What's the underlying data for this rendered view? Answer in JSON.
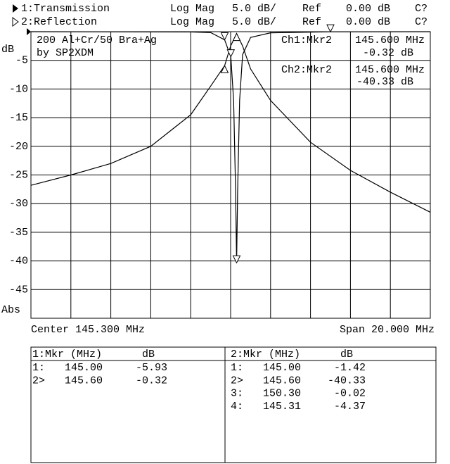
{
  "chart_data": {
    "type": "line",
    "channels": [
      {
        "label": "1:Transmission",
        "format": "Log Mag",
        "scale": "5.0 dB/",
        "ref_label": "Ref",
        "ref": "0.00 dB",
        "cal": "C?"
      },
      {
        "label": "2:Reflection",
        "format": "Log Mag",
        "scale": "5.0 dB/",
        "ref_label": "Ref",
        "ref": "0.00 dB",
        "cal": "C?"
      }
    ],
    "y_unit_label": "dB",
    "bottom_label": "Abs",
    "annotations": [
      "200 Al+Cr/50 Bra+Ag",
      "by SP2XDM"
    ],
    "readouts": [
      [
        "Ch1:Mkr2",
        "145.600 MHz",
        "-0.32 dB"
      ],
      [
        "Ch2:Mkr2",
        "145.600 MHz",
        "-40.33 dB"
      ]
    ],
    "center_label": "Center 145.300 MHz",
    "span_label": "Span 20.000 MHz",
    "xlim": [
      135.3,
      155.3
    ],
    "ylim": [
      -50,
      0
    ],
    "yticks": [
      -5,
      -10,
      -15,
      -20,
      -25,
      -30,
      -35,
      -40,
      -45
    ],
    "grid": true,
    "series": [
      {
        "name": "Transmission",
        "color": "#000000",
        "x": [
          135.3,
          137.3,
          139.3,
          141.3,
          143.3,
          144.3,
          145.0,
          145.3,
          145.6,
          145.9,
          146.3,
          147.3,
          149.3,
          151.3,
          153.3,
          155.3
        ],
        "values": [
          -26.8,
          -25.0,
          -23.0,
          -20.0,
          -14.5,
          -9.5,
          -5.93,
          -2.5,
          -0.32,
          -2.5,
          -6.5,
          -12,
          -19.3,
          -24.2,
          -28,
          -31.5
        ],
        "table_header": [
          "1:Mkr (MHz)",
          "dB"
        ],
        "markers": [
          {
            "name": "1:",
            "x": {
              "value": 145,
              "label": "145.00"
            },
            "value": -5.93
          },
          {
            "name": "2>",
            "x": {
              "value": 145.6,
              "label": "145.60"
            },
            "value": -0.32
          }
        ]
      },
      {
        "name": "Reflection",
        "color": "#000000",
        "x": [
          135.3,
          143.3,
          144.3,
          145.0,
          145.31,
          145.45,
          145.55,
          145.6,
          145.65,
          145.75,
          145.9,
          146.3,
          147.3,
          150.3,
          155.3
        ],
        "values": [
          0,
          -0.05,
          -0.15,
          -1.42,
          -4.37,
          -12,
          -28,
          -40.33,
          -28,
          -12,
          -4,
          -1,
          -0.2,
          -0.02,
          0
        ],
        "table_header": [
          "2:Mkr (MHz)",
          "dB"
        ],
        "markers": [
          {
            "name": "1:",
            "x": {
              "value": 145,
              "label": "145.00"
            },
            "value": -1.42
          },
          {
            "name": "2>",
            "x": {
              "value": 145.6,
              "label": "145.60"
            },
            "value": -40.33
          },
          {
            "name": "3:",
            "x": {
              "value": 150.3,
              "label": "150.30"
            },
            "value": -0.02
          },
          {
            "name": "4:",
            "x": 145.31,
            "value": -4.37
          }
        ]
      }
    ]
  }
}
